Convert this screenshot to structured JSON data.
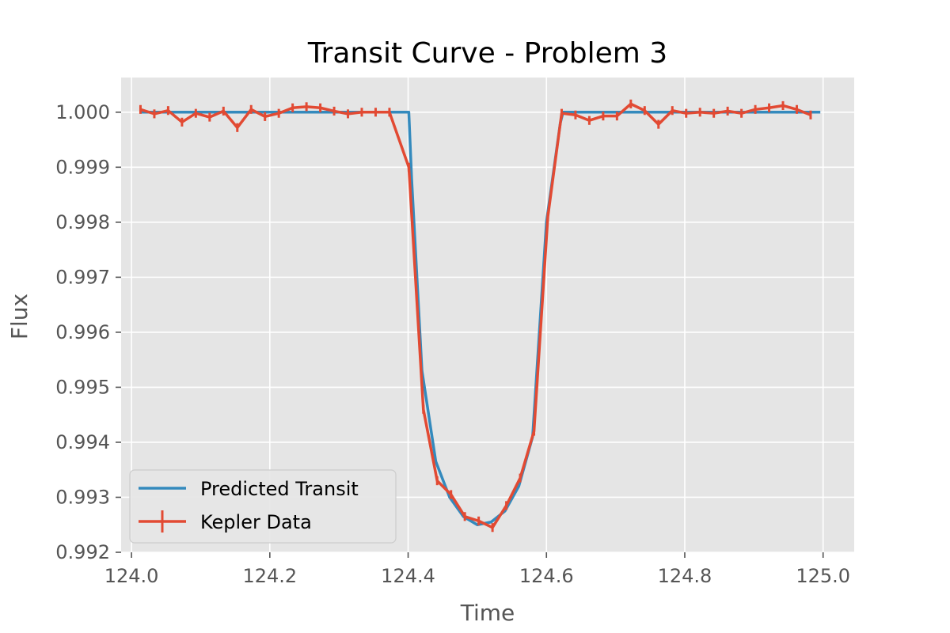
{
  "chart_data": {
    "type": "line",
    "title": "Transit Curve - Problem 3",
    "xlabel": "Time",
    "ylabel": "Flux",
    "xlim": [
      123.985,
      125.045
    ],
    "ylim": [
      0.992,
      1.00063
    ],
    "xticks": [
      124.0,
      124.2,
      124.4,
      124.6,
      124.8,
      125.0
    ],
    "xtick_labels": [
      "124.0",
      "124.2",
      "124.4",
      "124.6",
      "124.8",
      "125.0"
    ],
    "yticks": [
      0.992,
      0.993,
      0.994,
      0.995,
      0.996,
      0.997,
      0.998,
      0.999,
      1.0
    ],
    "ytick_labels": [
      "0.992",
      "0.993",
      "0.994",
      "0.995",
      "0.996",
      "0.997",
      "0.998",
      "0.999",
      "1.000"
    ],
    "grid": true,
    "legend_position": "lower-left",
    "background": "#e5e5e5",
    "series": [
      {
        "name": "Predicted Transit",
        "color": "#348abd",
        "x": [
          124.013,
          124.401,
          124.405,
          124.42,
          124.44,
          124.46,
          124.48,
          124.5,
          124.52,
          124.54,
          124.56,
          124.58,
          124.6,
          124.62,
          124.624,
          124.996
        ],
        "y": [
          1.0,
          1.0,
          0.9988,
          0.9953,
          0.99365,
          0.993,
          0.99265,
          0.9925,
          0.99255,
          0.99275,
          0.9932,
          0.9941,
          0.998,
          0.9998,
          1.0,
          1.0
        ]
      },
      {
        "name": "Kepler Data",
        "color": "#e24a33",
        "error_bars": true,
        "x": [
          124.013,
          124.033,
          124.053,
          124.073,
          124.093,
          124.113,
          124.133,
          124.153,
          124.173,
          124.193,
          124.213,
          124.233,
          124.253,
          124.273,
          124.293,
          124.313,
          124.333,
          124.353,
          124.373,
          124.401,
          124.422,
          124.442,
          124.462,
          124.482,
          124.502,
          124.522,
          124.542,
          124.562,
          124.582,
          124.602,
          124.622,
          124.642,
          124.662,
          124.682,
          124.702,
          124.722,
          124.742,
          124.762,
          124.782,
          124.802,
          124.822,
          124.842,
          124.862,
          124.882,
          124.902,
          124.922,
          124.942,
          124.962,
          124.982
        ],
        "y": [
          1.00005,
          0.99997,
          1.00003,
          0.99982,
          0.99998,
          0.99991,
          1.00002,
          0.99972,
          1.00005,
          0.99992,
          0.99998,
          1.00008,
          1.0001,
          1.00008,
          1.00002,
          0.99997,
          1.0,
          1.0,
          1.0,
          0.999,
          0.9946,
          0.9933,
          0.99305,
          0.99265,
          0.99257,
          0.99245,
          0.99285,
          0.99335,
          0.9942,
          0.9981,
          0.99998,
          0.99995,
          0.99985,
          0.99993,
          0.99993,
          1.00015,
          1.00003,
          0.99978,
          1.00003,
          0.99998,
          1.0,
          0.99998,
          1.00002,
          0.99998,
          1.00005,
          1.00008,
          1.00012,
          1.00005,
          0.99995
        ],
        "yerr": 8e-05
      }
    ]
  }
}
